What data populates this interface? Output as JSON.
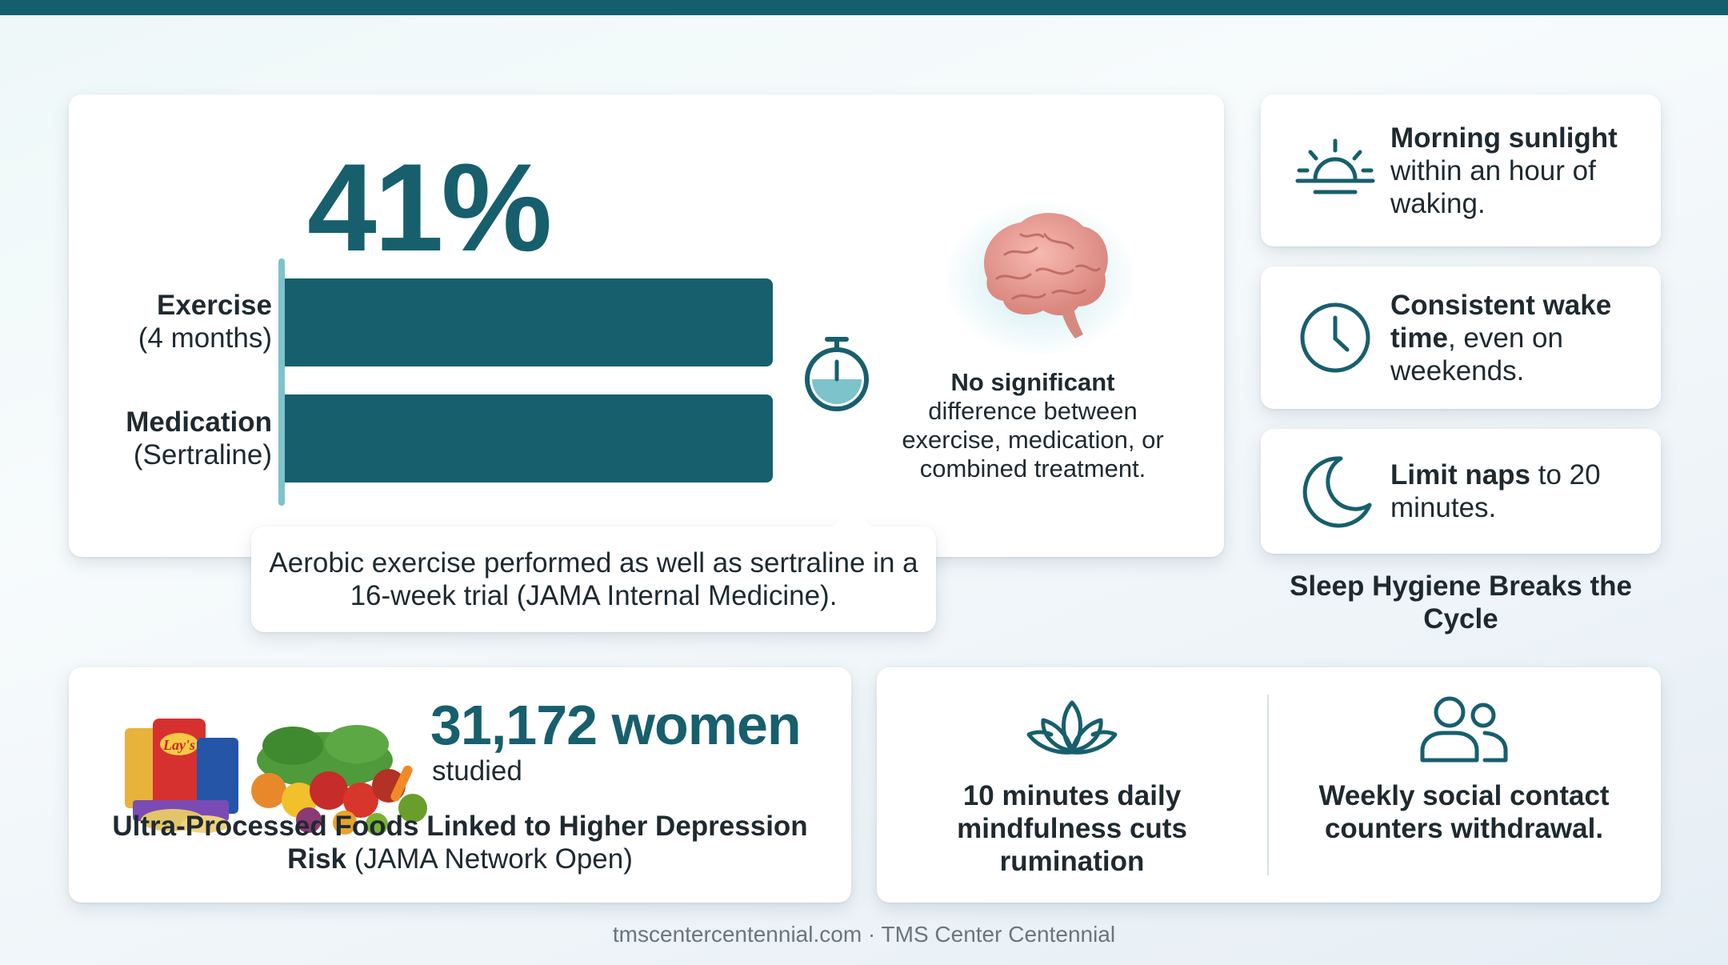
{
  "main": {
    "stat": "41%",
    "exercise": {
      "label": "Exercise",
      "sub": "(4 months)"
    },
    "medication": {
      "label": "Medication",
      "sub": "(Sertraline)"
    },
    "no_diff": {
      "bold": "No significant",
      "rest": "difference between exercise, medication, or combined treatment."
    },
    "callout": "Aerobic exercise performed as well as sertraline in a 16-week trial (JAMA Internal Medicine)."
  },
  "sleep": {
    "items": [
      {
        "icon": "sunrise-icon",
        "bold": "Morning sunlight",
        "rest": " within an hour of waking."
      },
      {
        "icon": "clock-icon",
        "bold": "Consistent wake time",
        "rest": ", even on weekends."
      },
      {
        "icon": "moon-icon",
        "bold": "Limit naps",
        "rest": " to 20 minutes."
      }
    ],
    "caption": "Sleep Hygiene Breaks the Cycle"
  },
  "food": {
    "count": "31,172 women",
    "sub": "studied",
    "caption_bold": "Ultra-Processed Foods Linked to Higher Depression Risk",
    "caption_rest": " (JAMA Network Open)",
    "chip_brand": "Lay's"
  },
  "habits": {
    "mindfulness": "10 minutes daily mindfulness cuts rumination",
    "social": "Weekly social contact counters withdrawal."
  },
  "footer": "tmscentercentennial.com · TMS Center Centennial",
  "colors": {
    "primary": "#175f6d",
    "accent": "#7cc3cc",
    "topbar": "#135f6e"
  }
}
